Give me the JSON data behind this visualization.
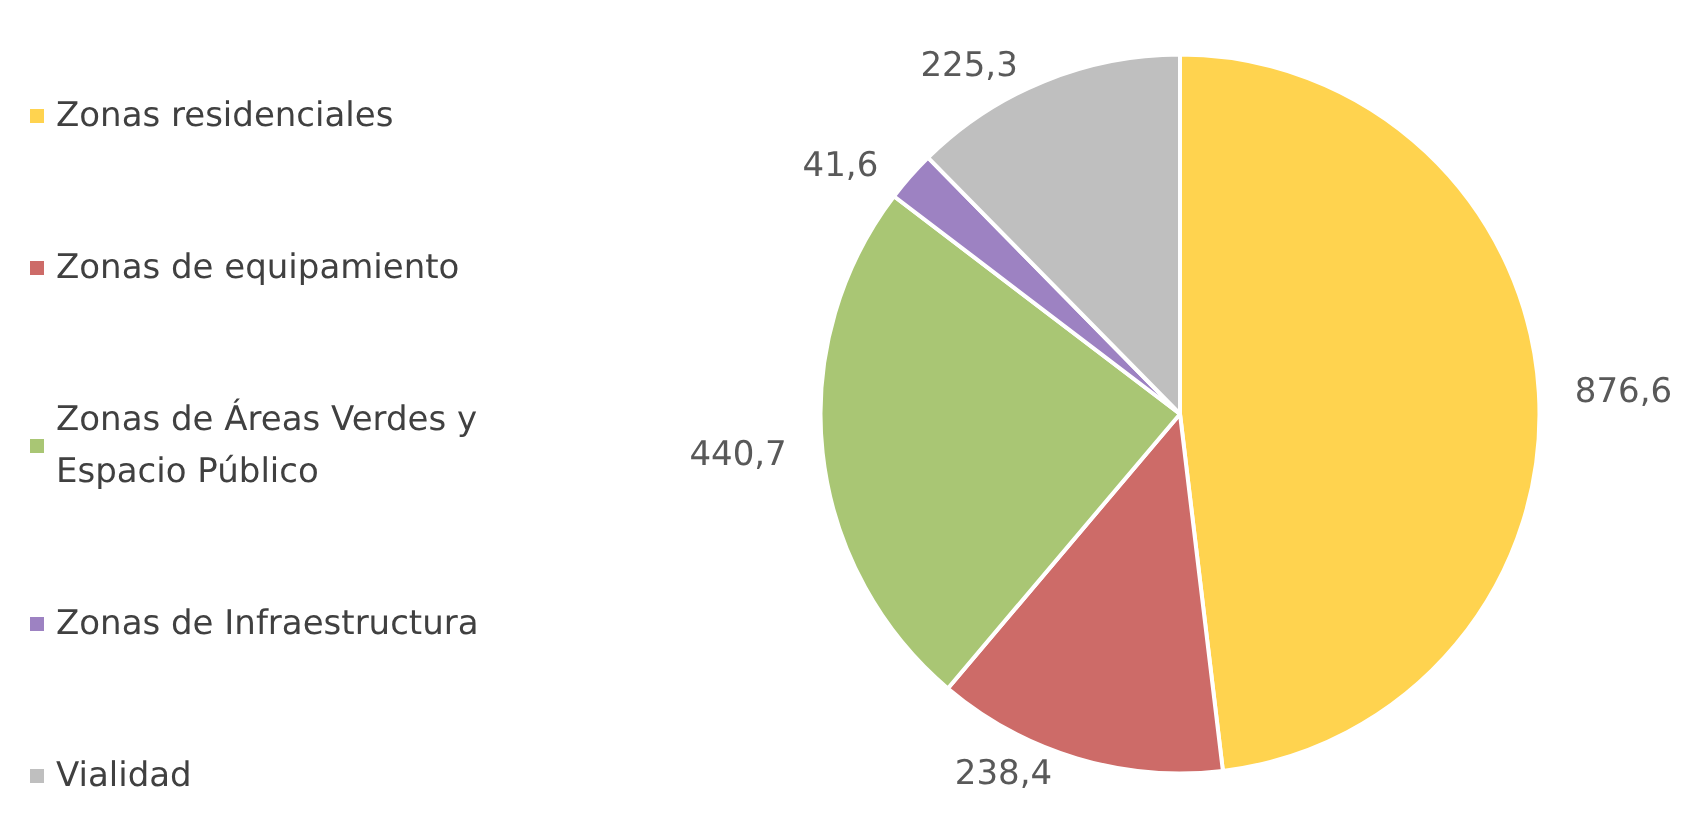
{
  "chart_data": {
    "type": "pie",
    "categories": [
      "Zonas residenciales",
      "Zonas de equipamiento",
      "Zonas de Áreas Verdes y Espacio Público",
      "Zonas de Infraestructura",
      "Vialidad"
    ],
    "values": [
      876.6,
      238.4,
      440.7,
      41.6,
      225.3
    ],
    "value_labels": [
      "876,6",
      "238,4",
      "440,7",
      "41,6",
      "225,3"
    ],
    "colors": [
      "#ffd34f",
      "#cd6b68",
      "#a9c674",
      "#9d82c2",
      "#bfbfbf"
    ],
    "legend": "left"
  }
}
